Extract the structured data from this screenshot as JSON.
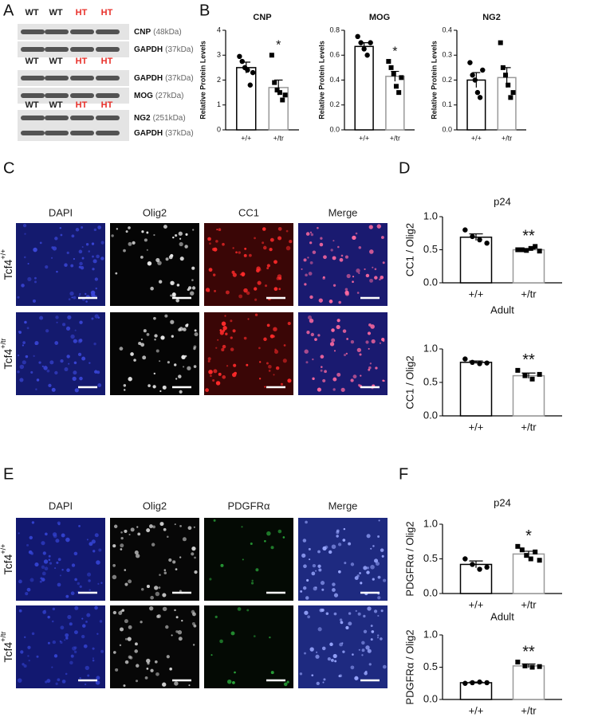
{
  "panels": [
    "A",
    "B",
    "C",
    "D",
    "E",
    "F"
  ],
  "blot": {
    "groups": [
      {
        "lanes": [
          "WT",
          "WT",
          "HT",
          "HT"
        ],
        "bands": [
          {
            "name": "CNP",
            "size": "(48kDa)"
          },
          {
            "name": "GAPDH",
            "size": "(37kDa)"
          }
        ]
      },
      {
        "lanes": [
          "WT",
          "WT",
          "HT",
          "HT"
        ],
        "bands": [
          {
            "name": "GAPDH",
            "size": "(37kDa)"
          },
          {
            "name": "MOG",
            "size": "(27kDa)"
          }
        ]
      },
      {
        "lanes": [
          "WT",
          "WT",
          "HT",
          "HT"
        ],
        "bands": [
          {
            "name": "NG2",
            "size": "(251kDa)"
          },
          {
            "name": "GAPDH",
            "size": "(37kDa)"
          }
        ]
      }
    ]
  },
  "images_c": {
    "columns": [
      "DAPI",
      "Olig2",
      "CC1",
      "Merge"
    ],
    "rows": [
      {
        "gene": "Tcf4",
        "genotype": "+/+"
      },
      {
        "gene": "Tcf4",
        "genotype": "+/tr"
      }
    ]
  },
  "images_e": {
    "columns": [
      "DAPI",
      "Olig2",
      "PDGFRα",
      "Merge"
    ],
    "rows": [
      {
        "gene": "Tcf4",
        "genotype": "+/+"
      },
      {
        "gene": "Tcf4",
        "genotype": "+/tr"
      }
    ]
  },
  "chart_data": [
    {
      "type": "bar",
      "title": "CNP",
      "ylabel": "Relative Protein Levels",
      "categories": [
        "+/+",
        "+/tr"
      ],
      "values": [
        2.5,
        1.7
      ],
      "errors": [
        0.22,
        0.3
      ],
      "points": [
        [
          2.95,
          2.75,
          2.5,
          2.4,
          1.8,
          2.3
        ],
        [
          3.0,
          1.9,
          1.6,
          1.5,
          1.2,
          1.4
        ]
      ],
      "colors": [
        "#000000",
        "#999999"
      ],
      "significance": "*",
      "ylim": [
        0,
        4
      ],
      "yticks": [
        0,
        1,
        2,
        3,
        4
      ]
    },
    {
      "type": "bar",
      "title": "MOG",
      "ylabel": "Relative Protein Levels",
      "categories": [
        "+/+",
        "+/tr"
      ],
      "values": [
        0.67,
        0.43
      ],
      "errors": [
        0.03,
        0.04
      ],
      "points": [
        [
          0.75,
          0.7,
          0.65,
          0.6,
          0.7
        ],
        [
          0.55,
          0.5,
          0.45,
          0.35,
          0.3,
          0.42
        ]
      ],
      "colors": [
        "#000000",
        "#999999"
      ],
      "significance": "*",
      "ylim": [
        0,
        0.8
      ],
      "yticks": [
        {
          "value": 0,
          "label": "0.0"
        },
        0.2,
        0.4,
        0.6,
        0.8
      ]
    },
    {
      "type": "bar",
      "title": "NG2",
      "ylabel": "Relative Protein Levels",
      "categories": [
        "+/+",
        "+/tr"
      ],
      "values": [
        0.2,
        0.21
      ],
      "errors": [
        0.03,
        0.04
      ],
      "points": [
        [
          0.27,
          0.22,
          0.2,
          0.15,
          0.13,
          0.24
        ],
        [
          0.35,
          0.25,
          0.22,
          0.18,
          0.13,
          0.15
        ]
      ],
      "colors": [
        "#000000",
        "#999999"
      ],
      "ylim": [
        0,
        0.4
      ],
      "yticks": [
        {
          "value": 0,
          "label": "0.0"
        },
        0.1,
        0.2,
        0.3,
        0.4
      ]
    },
    {
      "type": "bar",
      "title": "p24",
      "ylabel": "CC1 / Olig2",
      "categories": [
        "+/+",
        "+/tr"
      ],
      "values": [
        0.69,
        0.5
      ],
      "errors": [
        0.05,
        0.01
      ],
      "points": [
        [
          0.8,
          0.7,
          0.65,
          0.6
        ],
        [
          0.5,
          0.5,
          0.49,
          0.52,
          0.55,
          0.48
        ]
      ],
      "colors": [
        "#000000",
        "#999999"
      ],
      "significance": "**",
      "ylim": [
        0,
        1
      ],
      "yticks": [
        {
          "value": 0,
          "label": "0.0"
        },
        0.5,
        {
          "value": 1,
          "label": "1.0"
        }
      ]
    },
    {
      "type": "bar",
      "title": "Adult",
      "ylabel": "CC1 / Olig2",
      "categories": [
        "+/+",
        "+/tr"
      ],
      "values": [
        0.8,
        0.6
      ],
      "errors": [
        0.02,
        0.04
      ],
      "points": [
        [
          0.85,
          0.8,
          0.78,
          0.79
        ],
        [
          0.68,
          0.6,
          0.55,
          0.62
        ]
      ],
      "colors": [
        "#000000",
        "#999999"
      ],
      "significance": "**",
      "ylim": [
        0,
        1
      ],
      "yticks": [
        {
          "value": 0,
          "label": "0.0"
        },
        0.5,
        {
          "value": 1,
          "label": "1.0"
        }
      ]
    },
    {
      "type": "bar",
      "title": "p24",
      "ylabel": "PDGFRα / Olig2",
      "categories": [
        "+/+",
        "+/tr"
      ],
      "values": [
        0.42,
        0.57
      ],
      "errors": [
        0.05,
        0.04
      ],
      "points": [
        [
          0.5,
          0.42,
          0.35,
          0.38
        ],
        [
          0.68,
          0.63,
          0.55,
          0.5,
          0.6,
          0.48
        ]
      ],
      "colors": [
        "#000000",
        "#999999"
      ],
      "significance": "*",
      "ylim": [
        0,
        1
      ],
      "yticks": [
        {
          "value": 0,
          "label": "0.0"
        },
        0.5,
        {
          "value": 1,
          "label": "1.0"
        }
      ]
    },
    {
      "type": "bar",
      "title": "Adult",
      "ylabel": "PDGFRα / Olig2",
      "categories": [
        "+/+",
        "+/tr"
      ],
      "values": [
        0.26,
        0.52
      ],
      "errors": [
        0.01,
        0.03
      ],
      "points": [
        [
          0.25,
          0.26,
          0.27,
          0.26
        ],
        [
          0.58,
          0.52,
          0.5,
          0.51
        ]
      ],
      "colors": [
        "#000000",
        "#999999"
      ],
      "significance": "**",
      "ylim": [
        0,
        1
      ],
      "yticks": [
        {
          "value": 0,
          "label": "0.0"
        },
        0.5,
        {
          "value": 1,
          "label": "1.0"
        }
      ]
    }
  ]
}
